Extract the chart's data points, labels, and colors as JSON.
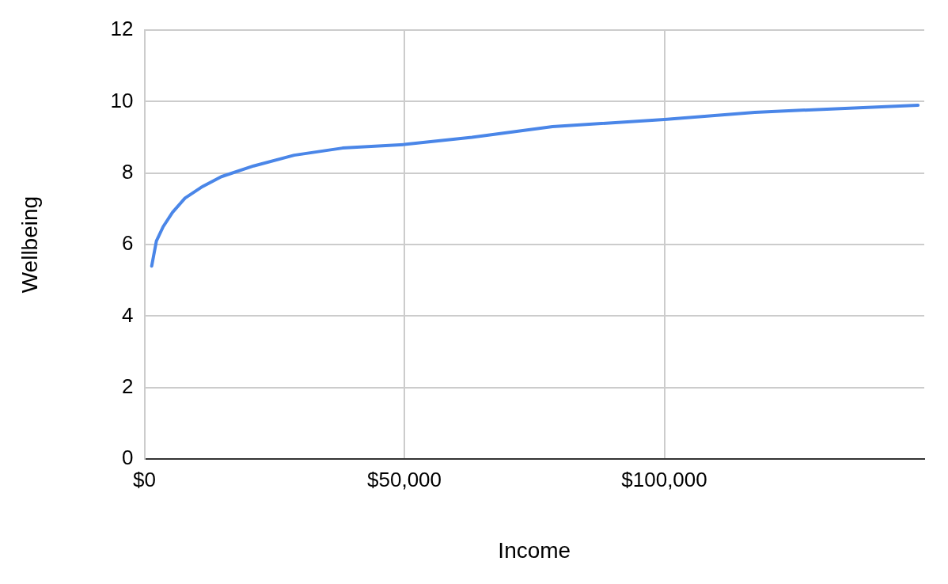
{
  "chart_data": {
    "type": "line",
    "xlabel": "Income",
    "ylabel": "Wellbeing",
    "xlim": [
      0,
      150000
    ],
    "xticks": [
      {
        "value": 0,
        "label": "$0"
      },
      {
        "value": 50000,
        "label": "$50,000"
      },
      {
        "value": 100000,
        "label": "$100,000"
      }
    ],
    "ylim": [
      0,
      12
    ],
    "yticks": [
      0,
      2,
      4,
      6,
      8,
      10,
      12
    ],
    "grid": true,
    "marker": "none",
    "line_style": "solid",
    "series": [
      {
        "color": "#4a86e8",
        "x": [
          1400,
          2300,
          3600,
          5400,
          7800,
          10900,
          14800,
          21000,
          28800,
          38100,
          50000,
          63000,
          78500,
          100000,
          117400,
          133000,
          148800
        ],
        "values": [
          5.4,
          6.1,
          6.5,
          6.9,
          7.3,
          7.6,
          7.9,
          8.2,
          8.5,
          8.7,
          8.8,
          9.0,
          9.3,
          9.5,
          9.7,
          9.8,
          9.9
        ]
      }
    ]
  }
}
